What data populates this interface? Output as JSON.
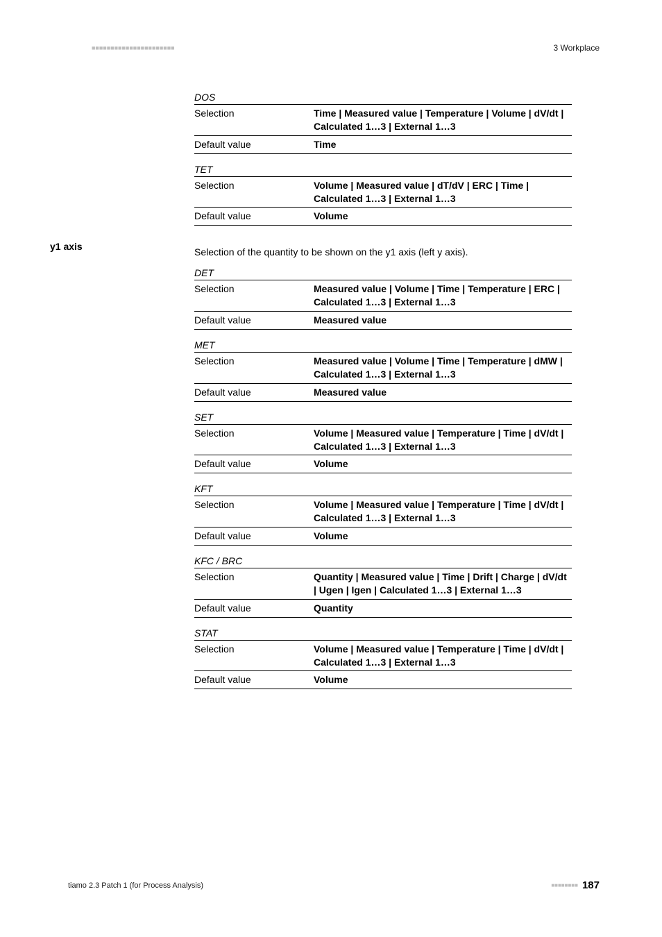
{
  "header": {
    "dashes": "■■■■■■■■■■■■■■■■■■■■■■",
    "right": "3 Workplace"
  },
  "section1": {
    "groups": [
      {
        "label": "DOS",
        "rows": [
          {
            "left": "Selection",
            "right": "Time | Measured value | Temperature | Volume | dV/dt | Calculated 1…3 | External 1…3"
          },
          {
            "left": "Default value",
            "right": "Time"
          }
        ]
      },
      {
        "label": "TET",
        "rows": [
          {
            "left": "Selection",
            "right": "Volume | Measured value | dT/dV | ERC | Time | Calculated 1…3 | External 1…3"
          },
          {
            "left": "Default value",
            "right": "Volume"
          }
        ]
      }
    ]
  },
  "y1": {
    "label": "y1 axis",
    "intro": "Selection of the quantity to be shown on the y1 axis (left y axis).",
    "groups": [
      {
        "label": "DET",
        "rows": [
          {
            "left": "Selection",
            "right": "Measured value | Volume | Time | Temperature | ERC | Calculated 1…3 | External 1…3"
          },
          {
            "left": "Default value",
            "right": "Measured value"
          }
        ]
      },
      {
        "label": "MET",
        "rows": [
          {
            "left": "Selection",
            "right": "Measured value | Volume | Time | Temperature | dMW | Calculated 1…3 | External 1…3"
          },
          {
            "left": "Default value",
            "right": "Measured value"
          }
        ]
      },
      {
        "label": "SET",
        "rows": [
          {
            "left": "Selection",
            "right": "Volume | Measured value | Temperature | Time | dV/dt | Calculated 1…3 | External 1…3"
          },
          {
            "left": "Default value",
            "right": "Volume"
          }
        ]
      },
      {
        "label": "KFT",
        "rows": [
          {
            "left": "Selection",
            "right": "Volume | Measured value | Temperature | Time | dV/dt | Calculated 1…3 | External 1…3"
          },
          {
            "left": "Default value",
            "right": "Volume"
          }
        ]
      },
      {
        "label": "KFC / BRC",
        "rows": [
          {
            "left": "Selection",
            "right": "Quantity | Measured value | Time | Drift | Charge | dV/dt | Ugen | Igen | Calculated 1…3 | External 1…3"
          },
          {
            "left": "Default value",
            "right": "Quantity"
          }
        ]
      },
      {
        "label": "STAT",
        "rows": [
          {
            "left": "Selection",
            "right": "Volume | Measured value | Temperature | Time | dV/dt | Calculated 1…3 | External 1…3"
          },
          {
            "left": "Default value",
            "right": "Volume"
          }
        ]
      }
    ]
  },
  "footer": {
    "left": "tiamo 2.3 Patch 1 (for Process Analysis)",
    "dashes": "■■■■■■■■",
    "page": "187"
  }
}
